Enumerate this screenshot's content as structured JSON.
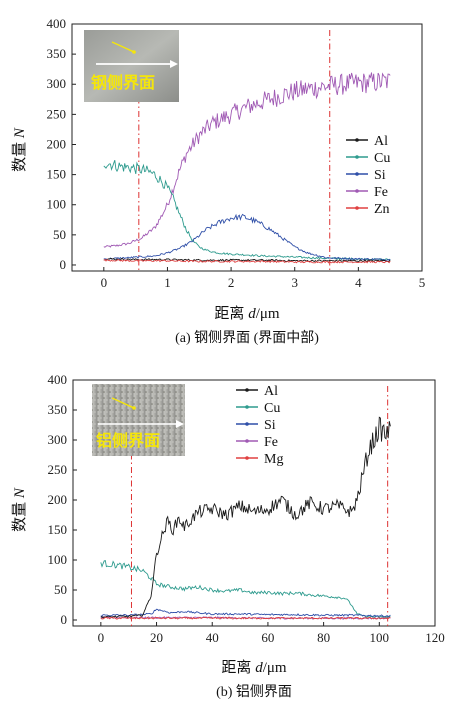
{
  "chart_data": [
    {
      "type": "line",
      "caption": "(a) 钢侧界面 (界面中部)",
      "xlabel_text": "距离 ",
      "xlabel_var": "d",
      "xlabel_unit": "/μm",
      "ylabel_text": "数量 ",
      "ylabel_var": "N",
      "xlim": [
        -0.5,
        5
      ],
      "ylim": [
        -10,
        400
      ],
      "xticks": [
        0,
        1,
        2,
        3,
        4,
        5
      ],
      "yticks": [
        0,
        50,
        100,
        150,
        200,
        250,
        300,
        350,
        400
      ],
      "vlines": [
        0.55,
        3.55
      ],
      "inset_label": "钢侧界面",
      "legend_position": "right",
      "series": [
        {
          "name": "Al",
          "color": "#1a1a1a",
          "x": [
            0,
            0.5,
            1,
            1.5,
            2,
            2.5,
            3,
            3.5,
            4,
            4.5
          ],
          "y": [
            10,
            9,
            9,
            8,
            8,
            8,
            7,
            7,
            7,
            7
          ]
        },
        {
          "name": "Cu",
          "color": "#2e9b8e",
          "x": [
            0,
            0.1,
            0.2,
            0.3,
            0.4,
            0.5,
            0.6,
            0.7,
            0.8,
            0.9,
            1.0,
            1.1,
            1.2,
            1.3,
            1.4,
            1.5,
            1.6,
            1.7,
            1.8,
            2.0,
            2.2,
            2.5,
            2.8,
            3.0,
            3.5,
            4.0,
            4.5
          ],
          "y": [
            170,
            168,
            165,
            163,
            162,
            160,
            158,
            155,
            150,
            140,
            128,
            108,
            82,
            58,
            40,
            30,
            25,
            22,
            20,
            18,
            17,
            15,
            14,
            13,
            11,
            10,
            9
          ]
        },
        {
          "name": "Si",
          "color": "#2f4fa8",
          "x": [
            0,
            0.4,
            0.8,
            1.0,
            1.2,
            1.4,
            1.6,
            1.8,
            2.0,
            2.2,
            2.4,
            2.6,
            2.8,
            3.0,
            3.2,
            3.5,
            4.0,
            4.5
          ],
          "y": [
            10,
            12,
            15,
            20,
            28,
            40,
            58,
            70,
            78,
            80,
            72,
            60,
            45,
            30,
            20,
            12,
            10,
            9
          ]
        },
        {
          "name": "Fe",
          "color": "#a05ab4",
          "x": [
            0,
            0.2,
            0.4,
            0.6,
            0.8,
            0.9,
            1.0,
            1.1,
            1.2,
            1.3,
            1.4,
            1.5,
            1.6,
            1.7,
            1.8,
            2.0,
            2.2,
            2.4,
            2.6,
            2.8,
            3.0,
            3.2,
            3.4,
            3.6,
            3.8,
            4.0,
            4.2,
            4.5
          ],
          "y": [
            30,
            32,
            36,
            45,
            62,
            80,
            100,
            130,
            160,
            185,
            200,
            215,
            225,
            235,
            240,
            250,
            260,
            268,
            275,
            282,
            288,
            292,
            295,
            298,
            300,
            302,
            303,
            305
          ]
        },
        {
          "name": "Zn",
          "color": "#e04040",
          "x": [
            0,
            0.5,
            1,
            1.5,
            2,
            2.5,
            3,
            3.5,
            4,
            4.5
          ],
          "y": [
            8,
            7,
            7,
            6,
            6,
            6,
            5,
            5,
            5,
            5
          ]
        }
      ]
    },
    {
      "type": "line",
      "caption": "(b) 铝侧界面",
      "xlabel_text": "距离 ",
      "xlabel_var": "d",
      "xlabel_unit": "/μm",
      "ylabel_text": "数量 ",
      "ylabel_var": "N",
      "xlim": [
        -10,
        120
      ],
      "ylim": [
        -10,
        400
      ],
      "xticks": [
        0,
        20,
        40,
        60,
        80,
        100,
        120
      ],
      "yticks": [
        0,
        50,
        100,
        150,
        200,
        250,
        300,
        350,
        400
      ],
      "vlines": [
        11,
        103
      ],
      "inset_label": "铝侧界面",
      "legend_position": "top",
      "series": [
        {
          "name": "Al",
          "color": "#1a1a1a",
          "x": [
            0,
            10,
            15,
            18,
            20,
            22,
            24,
            26,
            28,
            30,
            35,
            40,
            45,
            50,
            55,
            60,
            65,
            70,
            75,
            80,
            85,
            90,
            92,
            94,
            96,
            98,
            100,
            102,
            104
          ],
          "y": [
            5,
            6,
            8,
            40,
            110,
            140,
            165,
            150,
            170,
            155,
            180,
            185,
            175,
            190,
            180,
            185,
            200,
            175,
            195,
            185,
            190,
            180,
            200,
            240,
            280,
            300,
            320,
            310,
            315
          ]
        },
        {
          "name": "Cu",
          "color": "#2e9b8e",
          "x": [
            0,
            5,
            10,
            15,
            18,
            20,
            22,
            25,
            30,
            35,
            40,
            45,
            50,
            55,
            60,
            65,
            70,
            75,
            80,
            85,
            88,
            90,
            92,
            95,
            100,
            104
          ],
          "y": [
            95,
            92,
            88,
            82,
            70,
            60,
            58,
            55,
            52,
            55,
            50,
            48,
            50,
            45,
            46,
            44,
            45,
            42,
            40,
            38,
            36,
            25,
            10,
            6,
            5,
            5
          ]
        },
        {
          "name": "Si",
          "color": "#2f4fa8",
          "x": [
            0,
            10,
            18,
            20,
            25,
            30,
            35,
            40,
            50,
            60,
            70,
            80,
            90,
            100,
            104
          ],
          "y": [
            8,
            8,
            10,
            18,
            12,
            14,
            12,
            10,
            10,
            9,
            9,
            8,
            8,
            7,
            7
          ]
        },
        {
          "name": "Fe",
          "color": "#a05ab4",
          "x": [
            0,
            20,
            40,
            60,
            80,
            100,
            104
          ],
          "y": [
            4,
            4,
            4,
            3,
            3,
            3,
            3
          ]
        },
        {
          "name": "Mg",
          "color": "#e04040",
          "x": [
            0,
            20,
            40,
            60,
            80,
            100,
            104
          ],
          "y": [
            3,
            3,
            3,
            3,
            3,
            3,
            3
          ]
        }
      ]
    }
  ]
}
